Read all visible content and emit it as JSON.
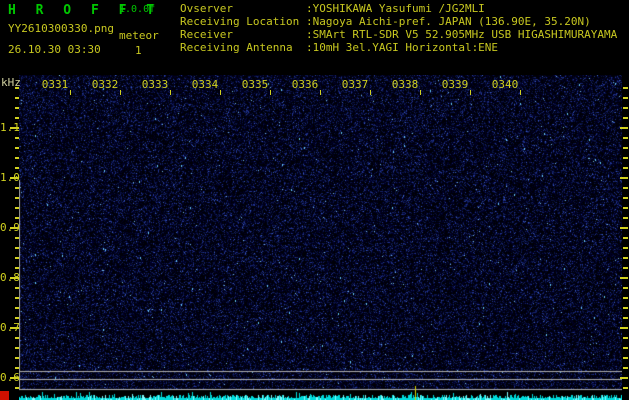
{
  "app": {
    "title": "H R O F F T",
    "version": "1.0.0f",
    "filename": "YY2610300330.png",
    "mode_label": "meteor",
    "timestamp": "26.10.30 03:30",
    "echo_count": "1"
  },
  "info_panel": {
    "rows": [
      {
        "label": "Ovserver",
        "value": ":YOSHIKAWA Yasufumi /JG2MLI"
      },
      {
        "label": "Receiving Location",
        "value": ":Nagoya Aichi-pref. JAPAN (136.90E, 35.20N)"
      },
      {
        "label": "Receiver",
        "value": ":SMArt RTL-SDR V5 52.905MHz USB HIGASHIMURAYAMA"
      },
      {
        "label": "Receiving Antenna",
        "value": ":10mH 3el.YAGI Horizontal:ENE"
      }
    ]
  },
  "spectrogram": {
    "freq_unit": "kHz",
    "freq_ticks": [
      "1.1",
      "1.0",
      "0.9",
      "0.8",
      "0.7",
      "0.6"
    ],
    "time_ticks": [
      "0331",
      "0332",
      "0333",
      "0334",
      "0335",
      "0336",
      "0337",
      "0338",
      "0339",
      "0340"
    ]
  },
  "colors": {
    "background": "#000000",
    "title_green": "#00c800",
    "text_yellow": "#c8c820",
    "axis_yellow": "#d0d020",
    "khz_label": "#d0d0a0",
    "noise_levels": [
      "#000008",
      "#000026",
      "#0a1446",
      "#16246c",
      "#24389a",
      "#3c60cc",
      "#78c0f0"
    ],
    "signal_cyan": "#00dcdc",
    "signal_cyan_bright": "#80ffff",
    "marker_red": "#d01000",
    "marker_yellow": "#d8d800",
    "grid_gray": "#b0b0b0"
  }
}
